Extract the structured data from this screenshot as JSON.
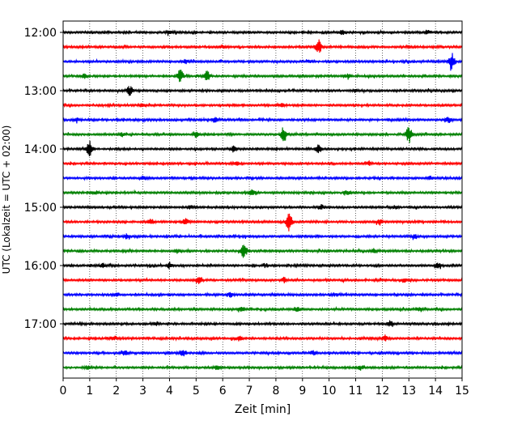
{
  "chart_data": {
    "type": "line",
    "title": "",
    "xlabel": "Zeit  [min]",
    "ylabel": "UTC (Lokalzeit = UTC + 02:00)",
    "xlim": [
      0,
      15
    ],
    "x_ticks": [
      0,
      1,
      2,
      3,
      4,
      5,
      6,
      7,
      8,
      9,
      10,
      11,
      12,
      13,
      14,
      15
    ],
    "x_tick_labels": [
      "0",
      "1",
      "2",
      "3",
      "4",
      "5",
      "6",
      "7",
      "8",
      "9",
      "10",
      "11",
      "12",
      "13",
      "14",
      "15"
    ],
    "y_tick_labels": [
      "12:00",
      "13:00",
      "14:00",
      "15:00",
      "16:00",
      "17:00"
    ],
    "trace_interval_minutes": 15,
    "grid": "vertical dotted",
    "trace_colors": [
      "#000000",
      "#ff0000",
      "#0000ff",
      "#008000"
    ],
    "traces": [
      {
        "start": "12:00",
        "events": [
          [
            4.0,
            0.25
          ],
          [
            10.5,
            0.3
          ],
          [
            13.7,
            0.3
          ]
        ]
      },
      {
        "start": "12:15",
        "events": [
          [
            9.6,
            1.0
          ],
          [
            6.0,
            0.2
          ]
        ]
      },
      {
        "start": "12:30",
        "events": [
          [
            14.6,
            1.2
          ],
          [
            4.6,
            0.25
          ],
          [
            9.3,
            0.2
          ]
        ]
      },
      {
        "start": "12:45",
        "events": [
          [
            4.4,
            0.9
          ],
          [
            5.4,
            0.7
          ],
          [
            0.8,
            0.3
          ],
          [
            10.7,
            0.3
          ]
        ]
      },
      {
        "start": "13:00",
        "events": [
          [
            2.5,
            0.6
          ],
          [
            11.0,
            0.2
          ]
        ]
      },
      {
        "start": "13:15",
        "events": [
          [
            8.2,
            0.25
          ],
          [
            3.0,
            0.2
          ]
        ]
      },
      {
        "start": "13:30",
        "events": [
          [
            14.5,
            0.4
          ],
          [
            5.7,
            0.3
          ],
          [
            0.5,
            0.2
          ]
        ]
      },
      {
        "start": "13:45",
        "events": [
          [
            8.3,
            1.0
          ],
          [
            13.0,
            1.0
          ],
          [
            5.0,
            0.3
          ],
          [
            2.2,
            0.25
          ]
        ]
      },
      {
        "start": "14:00",
        "events": [
          [
            1.0,
            1.0
          ],
          [
            9.6,
            0.5
          ],
          [
            6.4,
            0.4
          ]
        ]
      },
      {
        "start": "14:15",
        "events": [
          [
            11.5,
            0.3
          ],
          [
            6.5,
            0.25
          ]
        ]
      },
      {
        "start": "14:30",
        "events": [
          [
            3.0,
            0.25
          ],
          [
            13.8,
            0.2
          ]
        ]
      },
      {
        "start": "14:45",
        "events": [
          [
            7.1,
            0.4
          ],
          [
            10.7,
            0.3
          ],
          [
            1.2,
            0.25
          ]
        ]
      },
      {
        "start": "15:00",
        "events": [
          [
            9.7,
            0.3
          ],
          [
            4.8,
            0.2
          ],
          [
            12.5,
            0.25
          ]
        ]
      },
      {
        "start": "15:15",
        "events": [
          [
            8.5,
            1.2
          ],
          [
            3.3,
            0.4
          ],
          [
            4.6,
            0.4
          ],
          [
            11.9,
            0.3
          ]
        ]
      },
      {
        "start": "15:30",
        "events": [
          [
            2.4,
            0.3
          ],
          [
            13.2,
            0.25
          ]
        ]
      },
      {
        "start": "15:45",
        "events": [
          [
            6.8,
            1.0
          ],
          [
            4.3,
            0.25
          ],
          [
            11.7,
            0.25
          ]
        ]
      },
      {
        "start": "16:00",
        "events": [
          [
            4.0,
            0.4
          ],
          [
            14.1,
            0.4
          ],
          [
            1.5,
            0.3
          ],
          [
            7.6,
            0.25
          ]
        ]
      },
      {
        "start": "16:15",
        "events": [
          [
            5.1,
            0.4
          ],
          [
            8.3,
            0.3
          ],
          [
            12.8,
            0.25
          ]
        ]
      },
      {
        "start": "16:30",
        "events": [
          [
            6.3,
            0.3
          ],
          [
            10.2,
            0.2
          ],
          [
            2.0,
            0.2
          ]
        ]
      },
      {
        "start": "16:45",
        "events": [
          [
            8.8,
            0.3
          ],
          [
            6.7,
            0.3
          ],
          [
            13.4,
            0.2
          ]
        ]
      },
      {
        "start": "17:00",
        "events": [
          [
            12.3,
            0.4
          ],
          [
            3.5,
            0.25
          ]
        ]
      },
      {
        "start": "17:15",
        "events": [
          [
            12.1,
            0.4
          ],
          [
            6.6,
            0.3
          ],
          [
            1.9,
            0.25
          ]
        ]
      },
      {
        "start": "17:30",
        "events": [
          [
            4.5,
            0.4
          ],
          [
            2.3,
            0.4
          ],
          [
            9.4,
            0.3
          ]
        ]
      },
      {
        "start": "17:45",
        "events": [
          [
            11.2,
            0.3
          ],
          [
            5.8,
            0.3
          ],
          [
            0.9,
            0.2
          ]
        ]
      }
    ]
  }
}
